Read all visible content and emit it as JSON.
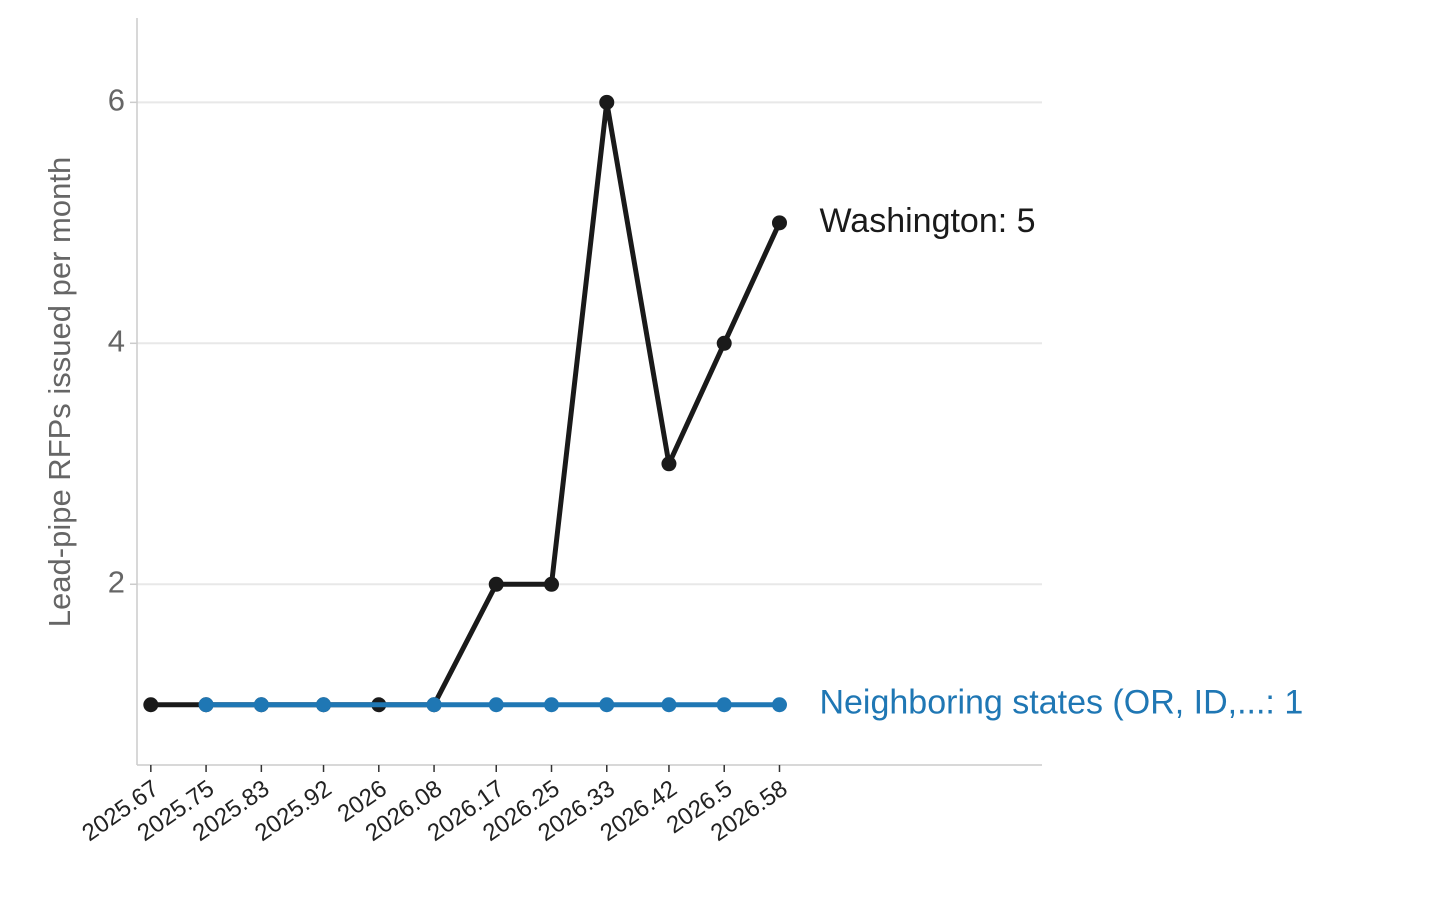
{
  "chart_data": {
    "type": "line",
    "ylabel": "Lead-pipe RFPs issued per month",
    "x": [
      2025.67,
      2025.75,
      2025.83,
      2025.92,
      2026,
      2026.08,
      2026.17,
      2026.25,
      2026.33,
      2026.42,
      2026.5,
      2026.58
    ],
    "series": [
      {
        "name": "Washington",
        "color": "#1a1a1a",
        "values": [
          1,
          1,
          1,
          1,
          1,
          1,
          2,
          2,
          6,
          3,
          4,
          5
        ],
        "end_label": "Washington: 5"
      },
      {
        "name": "Neighboring states (OR, ID,...",
        "color": "#1f77b4",
        "x": [
          2025.75,
          2025.83,
          2025.92,
          2026.08,
          2026.17,
          2026.25,
          2026.33,
          2026.42,
          2026.5,
          2026.58
        ],
        "values": [
          1,
          1,
          1,
          1,
          1,
          1,
          1,
          1,
          1,
          1
        ],
        "end_label": "Neighboring states (OR, ID,...: 1"
      }
    ],
    "xlim": [
      2025.65,
      2026.96
    ],
    "ylim": [
      0.5,
      6.7
    ],
    "xticks": [
      2025.67,
      2025.75,
      2025.83,
      2025.92,
      2026,
      2026.08,
      2026.17,
      2026.25,
      2026.33,
      2026.42,
      2026.5,
      2026.58
    ],
    "yticks": [
      2,
      4,
      6
    ],
    "grid": true
  }
}
